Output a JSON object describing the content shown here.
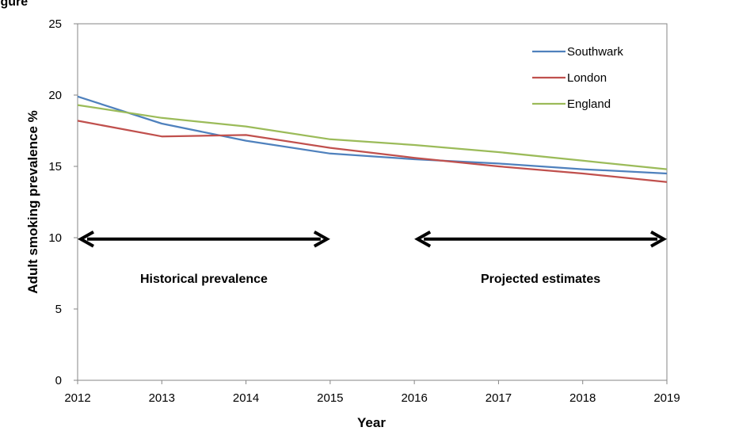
{
  "page_title_fragment": "igure",
  "chart_data": {
    "type": "line",
    "title": "",
    "xlabel": "Year",
    "ylabel": "Adult smoking prevalence %",
    "x": [
      2012,
      2013,
      2014,
      2015,
      2016,
      2017,
      2018,
      2019
    ],
    "x_tick_labels": [
      "2012",
      "2013",
      "2014",
      "2015",
      "2016",
      "2017",
      "2018",
      "2019"
    ],
    "ylim": [
      0,
      25
    ],
    "y_ticks": [
      0,
      5,
      10,
      15,
      20,
      25
    ],
    "y_tick_labels": [
      "0",
      "5",
      "10",
      "15",
      "20",
      "25"
    ],
    "grid": false,
    "legend_position": "top-right",
    "series": [
      {
        "name": "Southwark",
        "color": "#4F81BD",
        "values": [
          19.9,
          18.0,
          16.8,
          15.9,
          15.5,
          15.2,
          14.8,
          14.5
        ]
      },
      {
        "name": "London",
        "color": "#C0504D",
        "values": [
          18.2,
          17.1,
          17.2,
          16.3,
          15.6,
          15.0,
          14.5,
          13.9
        ]
      },
      {
        "name": "England",
        "color": "#9BBB59",
        "values": [
          19.3,
          18.4,
          17.8,
          16.9,
          16.5,
          16.0,
          15.4,
          14.8
        ]
      }
    ],
    "annotations": [
      {
        "label": "Historical prevalence",
        "arrow_from_x": 2012,
        "arrow_to_x": 2015,
        "arrow_y": 9.9
      },
      {
        "label": "Projected estimates",
        "arrow_from_x": 2016,
        "arrow_to_x": 2019,
        "arrow_y": 9.9
      }
    ]
  }
}
